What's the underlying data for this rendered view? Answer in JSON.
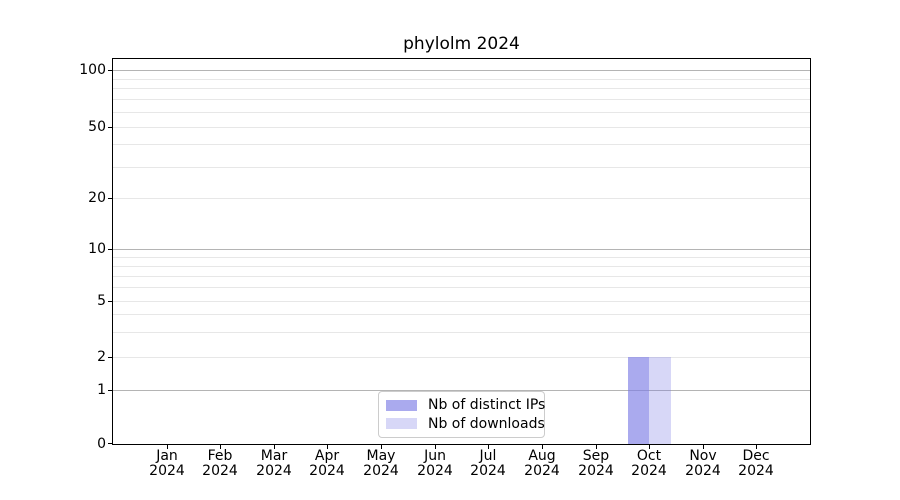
{
  "chart_data": {
    "type": "bar",
    "title": "phylolm 2024",
    "categories": [
      {
        "month": "Jan",
        "year": "2024"
      },
      {
        "month": "Feb",
        "year": "2024"
      },
      {
        "month": "Mar",
        "year": "2024"
      },
      {
        "month": "Apr",
        "year": "2024"
      },
      {
        "month": "May",
        "year": "2024"
      },
      {
        "month": "Jun",
        "year": "2024"
      },
      {
        "month": "Jul",
        "year": "2024"
      },
      {
        "month": "Aug",
        "year": "2024"
      },
      {
        "month": "Sep",
        "year": "2024"
      },
      {
        "month": "Oct",
        "year": "2024"
      },
      {
        "month": "Nov",
        "year": "2024"
      },
      {
        "month": "Dec",
        "year": "2024"
      }
    ],
    "series": [
      {
        "name": "Nb of distinct IPs",
        "color": "#7c7ce5",
        "alpha": 0.65,
        "values": [
          0,
          0,
          0,
          0,
          0,
          0,
          0,
          0,
          0,
          2,
          0,
          0
        ]
      },
      {
        "name": "Nb of downloads",
        "color": "#7c7ce5",
        "alpha": 0.3,
        "values": [
          0,
          0,
          0,
          0,
          0,
          0,
          0,
          0,
          0,
          2,
          0,
          0
        ]
      }
    ],
    "y_axis": {
      "scale": "symlog",
      "ticks": [
        0,
        1,
        2,
        5,
        10,
        20,
        50,
        100
      ],
      "ylim": [
        0,
        113
      ],
      "major_grid_values": [
        1,
        10,
        100
      ],
      "minor_grid_values": [
        2,
        3,
        4,
        5,
        6,
        7,
        8,
        9,
        20,
        30,
        40,
        50,
        60,
        70,
        80,
        90
      ]
    },
    "x_axis": {
      "xlabel": "",
      "ylabel": ""
    },
    "legend": {
      "position": "lower center"
    },
    "grid": "both"
  },
  "colors": {
    "background": "#ffffff",
    "axis": "#000000",
    "text": "#000000",
    "grid_major": "#b4b4b4",
    "grid_minor": "#e7e7e7",
    "legend_border": "#cccccc"
  }
}
